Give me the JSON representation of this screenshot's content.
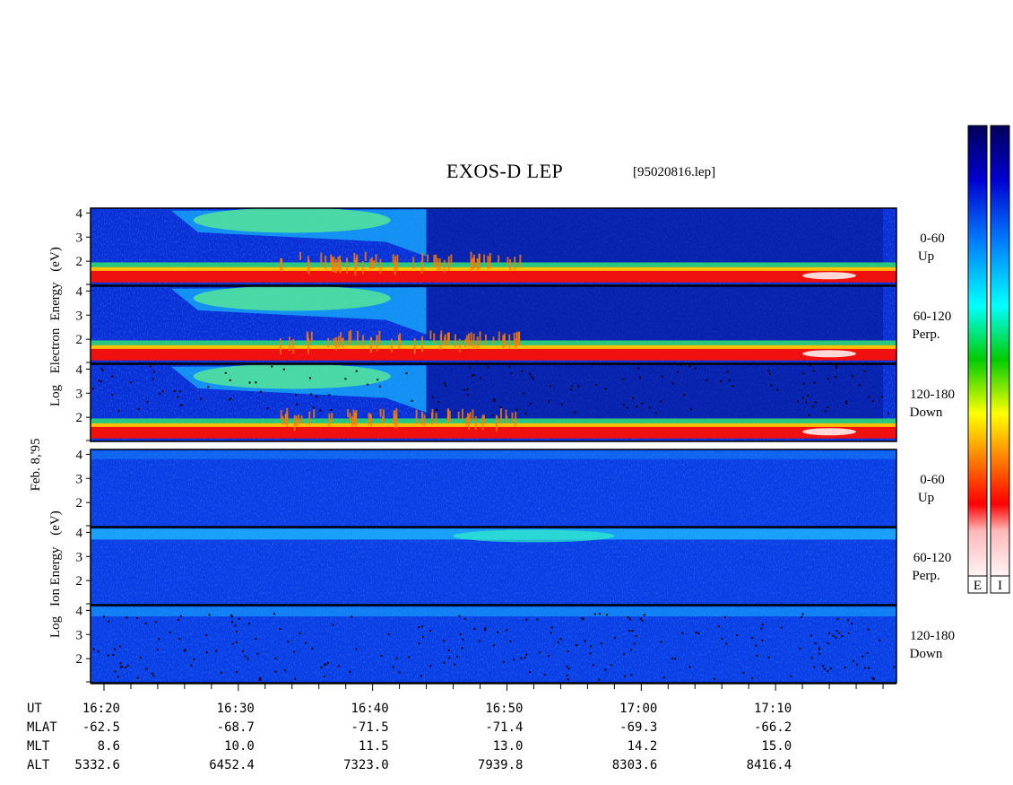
{
  "title": "EXOS-D LEP",
  "filename": "[95020816.lep]",
  "date_label": "Feb. 8,'95",
  "colorbar_labels": [
    "E",
    "I"
  ],
  "chart_data": {
    "type": "heatmap",
    "description_units": "log10 energy (eV) vs universal time",
    "groups": [
      {
        "ylabel_parts": [
          "Log",
          "Electron",
          "Energy",
          "(eV)"
        ],
        "panels": [
          {
            "pitch": "0-60",
            "dir": "Up",
            "yticks": [
              "4",
              "3",
              "2"
            ],
            "ylim": [
              1,
              4.2
            ]
          },
          {
            "pitch": "60-120",
            "dir": "Perp.",
            "yticks": [
              "4",
              "3",
              "2"
            ],
            "ylim": [
              1,
              4.2
            ]
          },
          {
            "pitch": "120-180",
            "dir": "Down",
            "yticks": [
              "4",
              "3",
              "2"
            ],
            "ylim": [
              1,
              4.2
            ]
          }
        ]
      },
      {
        "ylabel_parts": [
          "Log",
          "Ion",
          "Energy",
          "(eV)"
        ],
        "panels": [
          {
            "pitch": "0-60",
            "dir": "Up",
            "yticks": [
              "4",
              "3",
              "2"
            ],
            "ylim": [
              1,
              4.2
            ]
          },
          {
            "pitch": "60-120",
            "dir": "Perp.",
            "yticks": [
              "4",
              "3",
              "2"
            ],
            "ylim": [
              1,
              4.2
            ]
          },
          {
            "pitch": "120-180",
            "dir": "Down",
            "yticks": [
              "4",
              "3",
              "2"
            ],
            "ylim": [
              1,
              4.2
            ]
          }
        ]
      }
    ],
    "x_range_minutes": [
      0,
      60
    ],
    "time_ticks": [
      {
        "t": 1,
        "label": "16:20",
        "mlat": "-62.5",
        "mlt": "8.6",
        "alt": "5332.6"
      },
      {
        "t": 11,
        "label": "16:30",
        "mlat": "-68.7",
        "mlt": "10.0",
        "alt": "6452.4"
      },
      {
        "t": 21,
        "label": "16:40",
        "mlat": "-71.5",
        "mlt": "11.5",
        "alt": "7323.0"
      },
      {
        "t": 31,
        "label": "16:50",
        "mlat": "-71.4",
        "mlt": "13.0",
        "alt": "7939.8"
      },
      {
        "t": 41,
        "label": "17:00",
        "mlat": "-69.3",
        "mlt": "14.2",
        "alt": "8303.6"
      },
      {
        "t": 51,
        "label": "17:10",
        "mlat": "-66.2",
        "mlt": "15.0",
        "alt": "8416.4"
      }
    ],
    "row_labels": [
      "UT",
      "MLAT",
      "MLT",
      "ALT"
    ],
    "colorscale": [
      "#fff0f0",
      "#ff0000",
      "#ff8000",
      "#ffff00",
      "#00c000",
      "#00ffff",
      "#0080ff",
      "#0000c0",
      "#00006a"
    ]
  }
}
